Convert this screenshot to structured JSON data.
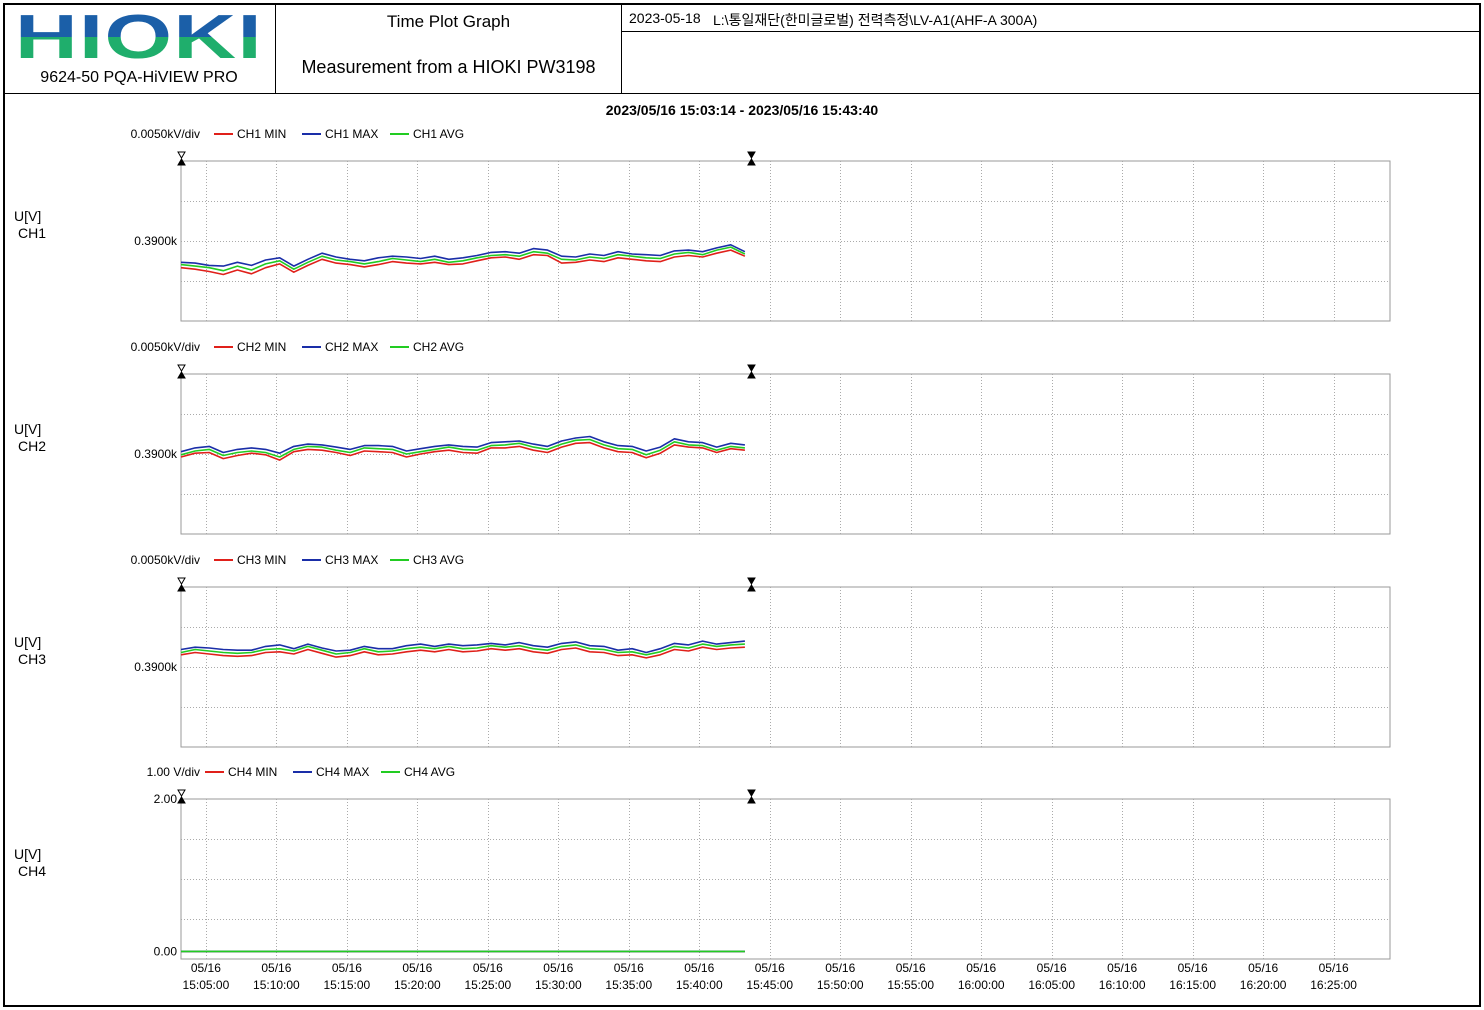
{
  "header": {
    "logo_text": "HIOKI",
    "product": "9624-50 PQA-HiVIEW PRO",
    "title": "Time Plot Graph",
    "subtitle": "Measurement from a HIOKI PW3198",
    "date": "2023-05-18",
    "path": "L:\\통일재단(한미글로벌) 전력측정\\LV-A1(AHF-A 300A)",
    "logo_colors": {
      "top": "#1b5fa8",
      "bottom": "#1fae6c"
    }
  },
  "time_range": "2023/05/16 15:03:14 - 2023/05/16 15:43:40",
  "x_axis": {
    "date_labels": [
      "05/16",
      "05/16",
      "05/16",
      "05/16",
      "05/16",
      "05/16",
      "05/16",
      "05/16",
      "05/16",
      "05/16",
      "05/16",
      "05/16",
      "05/16",
      "05/16",
      "05/16",
      "05/16",
      "05/16"
    ],
    "time_labels": [
      "15:05:00",
      "15:10:00",
      "15:15:00",
      "15:20:00",
      "15:25:00",
      "15:30:00",
      "15:35:00",
      "15:40:00",
      "15:45:00",
      "15:50:00",
      "15:55:00",
      "16:00:00",
      "16:05:00",
      "16:10:00",
      "16:15:00",
      "16:20:00",
      "16:25:00"
    ]
  },
  "colors": {
    "min": "#e0201a",
    "max": "#1a2ea8",
    "avg": "#22cc22",
    "grid": "#aaaaaa"
  },
  "panels": [
    {
      "label_line1": "U[V]",
      "label_line2": "CH1",
      "scale": "0.0050kV/div",
      "legend": [
        "CH1 MIN",
        "CH1 MAX",
        "CH1 AVG"
      ],
      "y_tick_labels": [
        "0.3900k"
      ]
    },
    {
      "label_line1": "U[V]",
      "label_line2": "CH2",
      "scale": "0.0050kV/div",
      "legend": [
        "CH2 MIN",
        "CH2 MAX",
        "CH2 AVG"
      ],
      "y_tick_labels": [
        "0.3900k"
      ]
    },
    {
      "label_line1": "U[V]",
      "label_line2": "CH3",
      "scale": "0.0050kV/div",
      "legend": [
        "CH3 MIN",
        "CH3 MAX",
        "CH3 AVG"
      ],
      "y_tick_labels": [
        "0.3900k"
      ]
    },
    {
      "label_line1": "U[V]",
      "label_line2": "CH4",
      "scale": "1.00 V/div",
      "legend": [
        "CH4 MIN",
        "CH4 MAX",
        "CH4 AVG"
      ],
      "y_tick_labels": [
        "2.00",
        "0.00"
      ]
    }
  ],
  "chart_data": [
    {
      "type": "line",
      "channel": "CH1",
      "ylabel": "U[V]",
      "y_unit_per_div": "0.0050kV/div",
      "x_range": [
        "15:03:14",
        "16:29:00"
      ],
      "ylim": [
        379.5,
        400.5
      ],
      "grid": true,
      "legend_placement": "top-left",
      "x_start": "15:03:14",
      "x_end": "15:43:40",
      "x_step_minutes": 1,
      "series": [
        {
          "name": "CH1 MIN",
          "values": [
            386.5,
            386.3,
            386.0,
            385.6,
            386.2,
            385.7,
            386.5,
            387.0,
            385.9,
            386.8,
            387.6,
            387.1,
            386.9,
            386.6,
            386.9,
            387.3,
            387.1,
            387.0,
            387.2,
            386.9,
            387.0,
            387.4,
            387.8,
            387.9,
            387.6,
            388.2,
            388.1,
            387.1,
            387.2,
            387.5,
            387.3,
            387.8,
            387.6,
            387.4,
            387.3,
            387.9,
            388.1,
            387.9,
            388.4,
            388.8,
            388.0
          ]
        },
        {
          "name": "CH1 MAX",
          "values": [
            387.2,
            387.1,
            386.8,
            386.7,
            387.2,
            386.8,
            387.5,
            387.8,
            386.7,
            387.6,
            388.4,
            387.9,
            387.6,
            387.4,
            387.8,
            388.0,
            387.9,
            387.7,
            388.0,
            387.6,
            387.8,
            388.1,
            388.5,
            388.6,
            388.4,
            389.0,
            388.8,
            388.0,
            387.9,
            388.3,
            388.1,
            388.6,
            388.3,
            388.2,
            388.1,
            388.7,
            388.8,
            388.6,
            389.1,
            389.5,
            388.6
          ]
        },
        {
          "name": "CH1 AVG",
          "values": [
            386.9,
            386.7,
            386.5,
            386.1,
            386.7,
            386.2,
            387.0,
            387.4,
            386.3,
            387.2,
            388.0,
            387.5,
            387.3,
            387.0,
            387.3,
            387.7,
            387.5,
            387.3,
            387.6,
            387.2,
            387.4,
            387.8,
            388.1,
            388.2,
            388.0,
            388.6,
            388.4,
            387.6,
            387.5,
            387.9,
            387.7,
            388.2,
            388.0,
            387.8,
            387.7,
            388.3,
            388.5,
            388.2,
            388.8,
            389.2,
            388.3
          ]
        }
      ]
    },
    {
      "type": "line",
      "channel": "CH2",
      "ylabel": "U[V]",
      "y_unit_per_div": "0.0050kV/div",
      "x_range": [
        "15:03:14",
        "16:29:00"
      ],
      "ylim": [
        379.5,
        400.5
      ],
      "grid": true,
      "legend_placement": "top-left",
      "x_start": "15:03:14",
      "x_end": "15:43:40",
      "x_step_minutes": 1,
      "series": [
        {
          "name": "CH2 MIN",
          "values": [
            389.6,
            390.1,
            390.2,
            389.4,
            389.8,
            390.1,
            389.9,
            389.2,
            390.3,
            390.6,
            390.5,
            390.2,
            389.8,
            390.4,
            390.3,
            390.2,
            389.6,
            390.0,
            390.3,
            390.5,
            390.2,
            390.1,
            390.8,
            390.8,
            391.0,
            390.5,
            390.2,
            390.9,
            391.4,
            391.5,
            390.8,
            390.3,
            390.2,
            389.5,
            390.1,
            391.2,
            390.9,
            390.8,
            390.2,
            390.7,
            390.5
          ]
        },
        {
          "name": "CH2 MAX",
          "values": [
            390.3,
            390.8,
            391.0,
            390.2,
            390.6,
            390.8,
            390.6,
            390.1,
            391.0,
            391.3,
            391.2,
            390.9,
            390.6,
            391.1,
            391.1,
            391.0,
            390.4,
            390.7,
            391.0,
            391.2,
            391.0,
            390.9,
            391.5,
            391.6,
            391.7,
            391.3,
            391.0,
            391.7,
            392.1,
            392.3,
            391.6,
            391.1,
            391.0,
            390.4,
            390.9,
            392.0,
            391.6,
            391.5,
            390.9,
            391.4,
            391.2
          ]
        },
        {
          "name": "CH2 AVG",
          "values": [
            389.9,
            390.4,
            390.6,
            389.8,
            390.2,
            390.4,
            390.2,
            389.6,
            390.6,
            391.0,
            390.9,
            390.5,
            390.2,
            390.8,
            390.7,
            390.6,
            390.0,
            390.3,
            390.6,
            390.9,
            390.6,
            390.5,
            391.1,
            391.2,
            391.4,
            390.9,
            390.6,
            391.3,
            391.8,
            391.9,
            391.2,
            390.7,
            390.6,
            389.9,
            390.5,
            391.6,
            391.2,
            391.1,
            390.5,
            391.0,
            390.8
          ]
        }
      ]
    },
    {
      "type": "line",
      "channel": "CH3",
      "ylabel": "U[V]",
      "y_unit_per_div": "0.0050kV/div",
      "x_range": [
        "15:03:14",
        "16:29:00"
      ],
      "ylim": [
        379.5,
        400.5
      ],
      "grid": true,
      "legend_placement": "top-left",
      "x_start": "15:03:14",
      "x_end": "15:43:40",
      "x_step_minutes": 1,
      "series": [
        {
          "name": "CH3 MIN",
          "values": [
            391.6,
            391.9,
            391.7,
            391.5,
            391.4,
            391.5,
            391.9,
            392.0,
            391.7,
            392.3,
            391.8,
            391.3,
            391.5,
            392.0,
            391.6,
            391.7,
            392.0,
            392.2,
            392.0,
            392.3,
            392.0,
            392.1,
            392.4,
            392.2,
            392.4,
            392.0,
            391.8,
            392.3,
            392.5,
            392.0,
            391.9,
            391.5,
            391.6,
            391.2,
            391.6,
            392.3,
            392.1,
            392.6,
            392.3,
            392.5,
            392.6
          ]
        },
        {
          "name": "CH3 MAX",
          "values": [
            392.3,
            392.6,
            392.5,
            392.3,
            392.2,
            392.2,
            392.7,
            392.9,
            392.4,
            393.0,
            392.5,
            392.1,
            392.2,
            392.7,
            392.4,
            392.4,
            392.8,
            393.0,
            392.7,
            393.0,
            392.8,
            392.9,
            393.1,
            392.9,
            393.2,
            392.8,
            392.6,
            393.1,
            393.3,
            392.8,
            392.7,
            392.2,
            392.4,
            391.9,
            392.4,
            393.1,
            392.9,
            393.4,
            393.0,
            393.2,
            393.4
          ]
        },
        {
          "name": "CH3 AVG",
          "values": [
            391.9,
            392.3,
            392.1,
            391.9,
            391.8,
            391.9,
            392.3,
            392.4,
            392.1,
            392.7,
            392.2,
            391.7,
            391.9,
            392.4,
            392.0,
            392.1,
            392.4,
            392.6,
            392.4,
            392.7,
            392.4,
            392.5,
            392.8,
            392.6,
            392.8,
            392.4,
            392.2,
            392.7,
            392.9,
            392.4,
            392.3,
            391.9,
            392.0,
            391.6,
            392.0,
            392.7,
            392.5,
            393.0,
            392.7,
            392.9,
            393.0
          ]
        }
      ]
    },
    {
      "type": "line",
      "channel": "CH4",
      "ylabel": "U[V]",
      "y_unit_per_div": "1.00 V/div",
      "x_range": [
        "15:03:14",
        "16:29:00"
      ],
      "ylim": [
        -0.1,
        2.0
      ],
      "grid": true,
      "legend_placement": "top-left",
      "x_start": "15:03:14",
      "x_end": "15:43:40",
      "x_step_minutes": 1,
      "series": [
        {
          "name": "CH4 MIN",
          "values": [
            0,
            0,
            0,
            0,
            0,
            0,
            0,
            0,
            0,
            0,
            0,
            0,
            0,
            0,
            0,
            0,
            0,
            0,
            0,
            0,
            0,
            0,
            0,
            0,
            0,
            0,
            0,
            0,
            0,
            0,
            0,
            0,
            0,
            0,
            0,
            0,
            0,
            0,
            0,
            0,
            0
          ]
        },
        {
          "name": "CH4 MAX",
          "values": [
            0,
            0,
            0,
            0,
            0,
            0,
            0,
            0,
            0,
            0,
            0,
            0,
            0,
            0,
            0,
            0,
            0,
            0,
            0,
            0,
            0,
            0,
            0,
            0,
            0,
            0,
            0,
            0,
            0,
            0,
            0,
            0,
            0,
            0,
            0,
            0,
            0,
            0,
            0,
            0,
            0
          ]
        },
        {
          "name": "CH4 AVG",
          "values": [
            0,
            0,
            0,
            0,
            0,
            0,
            0,
            0,
            0,
            0,
            0,
            0,
            0,
            0,
            0,
            0,
            0,
            0,
            0,
            0,
            0,
            0,
            0,
            0,
            0,
            0,
            0,
            0,
            0,
            0,
            0,
            0,
            0,
            0,
            0,
            0,
            0,
            0,
            0,
            0,
            0
          ]
        }
      ]
    }
  ]
}
